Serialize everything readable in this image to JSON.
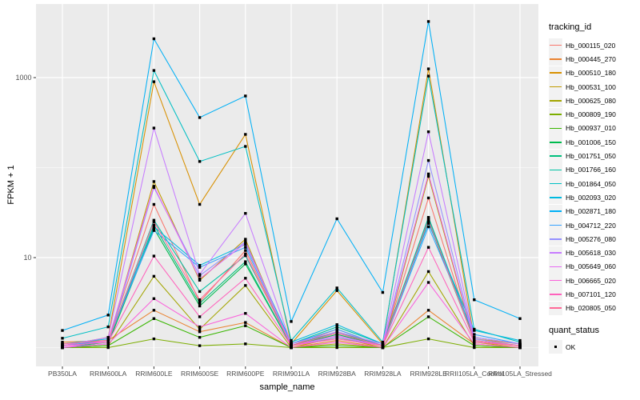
{
  "figure": {
    "background": "#FFFFFF",
    "panel_background": "#EBEBEB",
    "gridline_color": "#FFFFFF",
    "tick_color": "#333333",
    "tick_text_color": "#4D4D4D",
    "marker_color": "#000000"
  },
  "chart_data": {
    "type": "line",
    "title": "",
    "xlabel": "sample_name",
    "ylabel": "FPKM + 1",
    "y_scale": "log10",
    "y_ticks": [
      10,
      1000
    ],
    "y_minor_ticks": [
      1,
      100
    ],
    "ylim": [
      0.66,
      6500
    ],
    "grid": true,
    "marker": "black-square",
    "categories": [
      "PB350LA",
      "RRIM600LA",
      "RRIM600LE",
      "RRIM600SE",
      "RRIM600PE",
      "RRIM901LA",
      "RRIM928BA",
      "RRIM928LA",
      "RRIM928LE",
      "RRII105LA_Control",
      "RRII105LA_Stressed"
    ],
    "legend": {
      "title": "tracking_id",
      "position": "right"
    },
    "quant_legend": {
      "title": "quant_status",
      "items": [
        {
          "label": "OK",
          "shape": "square",
          "color": "#000000"
        }
      ]
    },
    "series": [
      {
        "name": "Hb_000115_020",
        "color": "#F8766D",
        "values": [
          1.1,
          1.2,
          39,
          3.2,
          12,
          1.05,
          1.6,
          1.05,
          46,
          1.15,
          1.05
        ]
      },
      {
        "name": "Hb_000445_270",
        "color": "#EA8331",
        "values": [
          1.15,
          1.2,
          2.6,
          1.5,
          1.9,
          1.0,
          1.2,
          1.0,
          2.6,
          1.1,
          1.0
        ]
      },
      {
        "name": "Hb_000510_180",
        "color": "#D89000",
        "values": [
          1.05,
          1.3,
          900,
          39,
          234,
          1.1,
          4.3,
          1.1,
          1250,
          1.25,
          1.1
        ]
      },
      {
        "name": "Hb_000531_100",
        "color": "#C09B00",
        "values": [
          1.0,
          1.15,
          70,
          5.6,
          16,
          1.0,
          1.3,
          1.0,
          80,
          1.15,
          1.0
        ]
      },
      {
        "name": "Hb_000625_080",
        "color": "#A3A500",
        "values": [
          1.0,
          1.05,
          6.2,
          1.6,
          4.9,
          1.0,
          1.1,
          1.0,
          7.0,
          1.05,
          1.0
        ]
      },
      {
        "name": "Hb_000809_190",
        "color": "#7CAE00",
        "values": [
          1.0,
          1.0,
          1.25,
          1.05,
          1.1,
          1.0,
          1.0,
          1.0,
          1.25,
          1.0,
          1.0
        ]
      },
      {
        "name": "Hb_000937_010",
        "color": "#39B600",
        "values": [
          1.0,
          1.05,
          2.1,
          1.3,
          1.75,
          1.0,
          1.05,
          1.0,
          2.2,
          1.05,
          1.0
        ]
      },
      {
        "name": "Hb_001006_150",
        "color": "#00BB4E",
        "values": [
          1.0,
          1.1,
          21,
          2.9,
          8.5,
          1.05,
          1.4,
          1.05,
          25,
          1.2,
          1.05
        ]
      },
      {
        "name": "Hb_001751_050",
        "color": "#00BF7D",
        "values": [
          1.0,
          1.15,
          23,
          3.1,
          9.0,
          1.05,
          1.5,
          1.05,
          27,
          1.2,
          1.05
        ]
      },
      {
        "name": "Hb_001766_160",
        "color": "#00C1A3",
        "values": [
          1.05,
          1.2,
          26,
          4.2,
          10.5,
          1.1,
          1.7,
          1.1,
          28,
          1.3,
          1.1
        ]
      },
      {
        "name": "Hb_001864_050",
        "color": "#00BFC4",
        "values": [
          1.27,
          1.7,
          1200,
          117,
          172,
          1.2,
          4.6,
          1.15,
          1040,
          1.6,
          1.15
        ]
      },
      {
        "name": "Hb_002093_020",
        "color": "#00BAE0",
        "values": [
          1.1,
          1.25,
          22,
          8.2,
          14,
          1.15,
          1.8,
          1.1,
          24,
          1.55,
          1.2
        ]
      },
      {
        "name": "Hb_002871_180",
        "color": "#00B0F6",
        "values": [
          1.55,
          2.3,
          2700,
          360,
          625,
          1.95,
          27,
          4.1,
          4200,
          3.4,
          2.1
        ]
      },
      {
        "name": "Hb_004712_220",
        "color": "#35A2FF",
        "values": [
          1.05,
          1.2,
          20,
          7.8,
          13,
          1.1,
          1.6,
          1.05,
          22,
          1.4,
          1.1
        ]
      },
      {
        "name": "Hb_005276_080",
        "color": "#9590FF",
        "values": [
          1.0,
          1.1,
          60,
          6.3,
          15,
          1.05,
          1.3,
          1.05,
          120,
          1.25,
          1.05
        ]
      },
      {
        "name": "Hb_005618_030",
        "color": "#C77CFF",
        "values": [
          1.05,
          1.3,
          275,
          6.5,
          31,
          1.1,
          1.5,
          1.1,
          250,
          1.3,
          1.1
        ]
      },
      {
        "name": "Hb_005649_060",
        "color": "#E76BF3",
        "values": [
          1.0,
          1.2,
          62,
          5.8,
          14.5,
          1.05,
          1.35,
          1.05,
          85,
          1.2,
          1.05
        ]
      },
      {
        "name": "Hb_006665_020",
        "color": "#FA62DB",
        "values": [
          1.0,
          1.1,
          3.5,
          1.7,
          2.4,
          1.0,
          1.15,
          1.0,
          5.3,
          1.1,
          1.0
        ]
      },
      {
        "name": "Hb_007101_120",
        "color": "#FF62BC",
        "values": [
          1.05,
          1.15,
          10.4,
          2.2,
          5.9,
          1.05,
          1.25,
          1.05,
          13,
          1.15,
          1.05
        ]
      },
      {
        "name": "Hb_020805_050",
        "color": "#FF6A98",
        "values": [
          1.1,
          1.2,
          25,
          3.4,
          11,
          1.05,
          1.45,
          1.05,
          26,
          1.2,
          1.05
        ]
      }
    ]
  }
}
